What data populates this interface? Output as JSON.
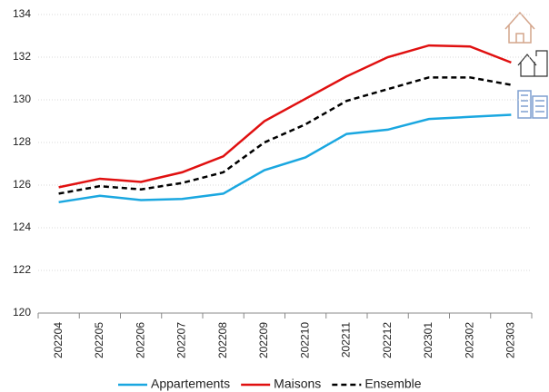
{
  "chart_data": {
    "type": "line",
    "categories": [
      "202204",
      "202205",
      "202206",
      "202207",
      "202208",
      "202209",
      "202210",
      "202211",
      "202212",
      "202301",
      "202302",
      "202303"
    ],
    "series": [
      {
        "name": "Appartements",
        "color": "#1aa7e0",
        "dash": false,
        "values": [
          125.2,
          125.5,
          125.3,
          125.35,
          125.6,
          126.7,
          127.3,
          128.4,
          128.6,
          129.1,
          129.2,
          129.3
        ]
      },
      {
        "name": "Maisons",
        "color": "#e01010",
        "dash": false,
        "values": [
          125.9,
          126.3,
          126.15,
          126.6,
          127.35,
          129.0,
          130.05,
          131.1,
          132.0,
          132.55,
          132.5,
          131.75
        ]
      },
      {
        "name": "Ensemble",
        "color": "#000000",
        "dash": true,
        "values": [
          125.6,
          125.95,
          125.8,
          126.1,
          126.6,
          128.0,
          128.85,
          129.95,
          130.5,
          131.05,
          131.05,
          130.7
        ]
      }
    ],
    "ylim": [
      120,
      134
    ],
    "yticks": [
      120,
      122,
      124,
      126,
      128,
      130,
      132,
      134
    ],
    "grid": true
  }
}
